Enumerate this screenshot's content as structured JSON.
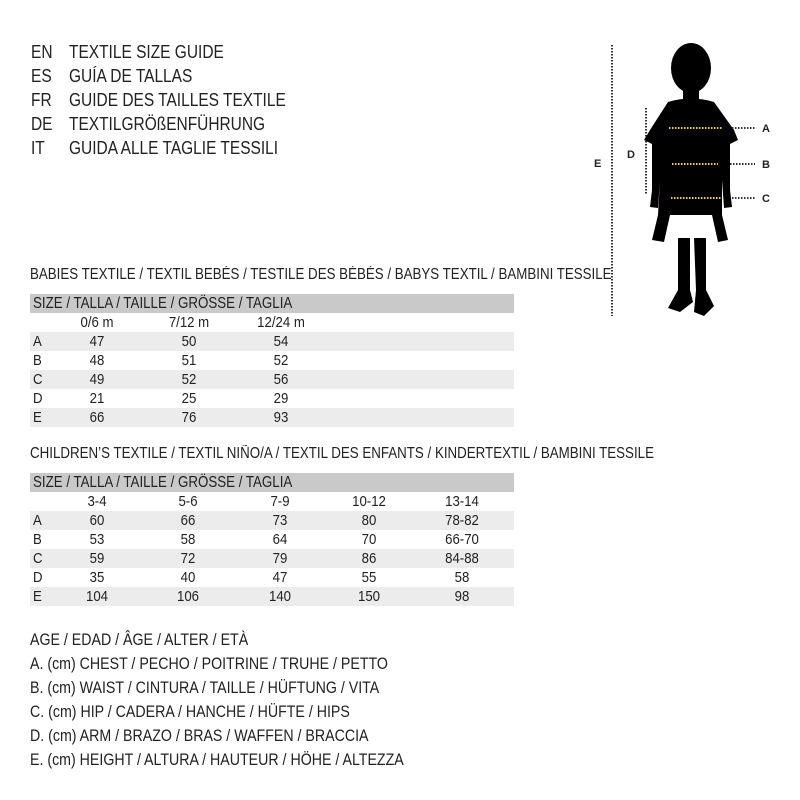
{
  "languages": [
    {
      "code": "EN",
      "label": "TEXTILE SIZE GUIDE"
    },
    {
      "code": "ES",
      "label": "GUÍA DE TALLAS"
    },
    {
      "code": "FR",
      "label": "GUIDE DES TAILLES TEXTILE"
    },
    {
      "code": "DE",
      "label": "TEXTILGRÖßENFÜHRUNG"
    },
    {
      "code": "IT",
      "label": "GUIDA ALLE TAGLIE TESSILI"
    }
  ],
  "figure": {
    "labels": {
      "A": "A",
      "B": "B",
      "C": "C",
      "D": "D",
      "E": "E"
    },
    "measure_line_color": "#f2d400"
  },
  "babies": {
    "title": "BABIES TEXTILE / TEXTIL BEBÉS / TESTILE DES BÉBÉS / BABYS TEXTIL / BAMBINI TESSILE",
    "size_header": "SIZE / TALLA / TAILLE / GRÖSSE / TAGLIA",
    "columns": [
      "0/6 m",
      "7/12 m",
      "12/24 m"
    ],
    "rows": [
      {
        "label": "A",
        "values": [
          "47",
          "50",
          "54"
        ]
      },
      {
        "label": "B",
        "values": [
          "48",
          "51",
          "52"
        ]
      },
      {
        "label": "C",
        "values": [
          "49",
          "52",
          "56"
        ]
      },
      {
        "label": "D",
        "values": [
          "21",
          "25",
          "29"
        ]
      },
      {
        "label": "E",
        "values": [
          "66",
          "76",
          "93"
        ]
      }
    ]
  },
  "children": {
    "title": "CHILDREN’S TEXTILE / TEXTIL NIÑO/A / TEXTIL DES ENFANTS / KINDERTEXTIL / BAMBINI TESSILE",
    "size_header": "SIZE / TALLA / TAILLE / GRÖSSE / TAGLIA",
    "columns": [
      "3-4",
      "5-6",
      "7-9",
      "10-12",
      "13-14"
    ],
    "rows": [
      {
        "label": "A",
        "values": [
          "60",
          "66",
          "73",
          "80",
          "78-82"
        ]
      },
      {
        "label": "B",
        "values": [
          "53",
          "58",
          "64",
          "70",
          "66-70"
        ]
      },
      {
        "label": "C",
        "values": [
          "59",
          "72",
          "79",
          "86",
          "84-88"
        ]
      },
      {
        "label": "D",
        "values": [
          "35",
          "40",
          "47",
          "55",
          "58"
        ]
      },
      {
        "label": "E",
        "values": [
          "104",
          "106",
          "140",
          "150",
          "98"
        ]
      }
    ]
  },
  "legend": [
    "AGE / EDAD / ÂGE / ALTER / ETÀ",
    "A. (cm) CHEST / PECHO / POITRINE / TRUHE / PETTO",
    "B. (cm) WAIST / CINTURA / TAILLE / HÜFTUNG / VITA",
    "C. (cm) HIP / CADERA / HANCHE / HÜFTE / HIPS",
    "D. (cm) ARM / BRAZO / BRAS / WAFFEN / BRACCIA",
    "E. (cm) HEIGHT / ALTURA / HAUTEUR / HÖHE / ALTEZZA"
  ]
}
